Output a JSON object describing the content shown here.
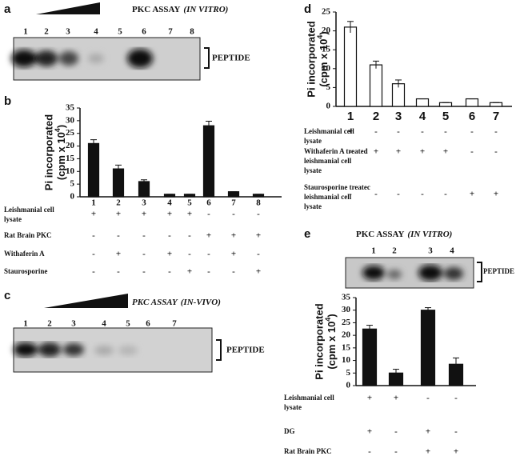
{
  "blots": [
    {
      "panel": "a",
      "title": "PKC ASSAY",
      "title_italic": "(IN VITRO)",
      "lanes": [
        "1",
        "2",
        "3",
        "4",
        "5",
        "6",
        "7",
        "8"
      ],
      "band_label": "PEPTIDE"
    },
    {
      "panel": "c",
      "title": "PKC ASSAY",
      "title_italic": "(IN-VIVO)",
      "lanes": [
        "1",
        "2",
        "3",
        "4",
        "5",
        "6",
        "7"
      ],
      "band_label": "PEPTIDE"
    },
    {
      "title": "PKC ASSAY",
      "title_italic": "(IN VITRO)",
      "lanes": [
        "1",
        "2",
        "3",
        "4"
      ],
      "band_label": "PEPTIDE"
    }
  ],
  "chart_data": [
    {
      "type": "bar",
      "panel": "b",
      "ylabel": "Pi incorporated",
      "ylabel_unit": "(cpm x 10",
      "ylabel_exp": "4",
      "ylabel_close": ")",
      "categories": [
        "1",
        "2",
        "3",
        "4",
        "5",
        "6",
        "7",
        "8"
      ],
      "values": [
        21,
        11,
        6,
        1,
        1,
        28,
        2,
        1
      ],
      "errors": [
        1.5,
        1.5,
        0.7,
        0,
        0,
        1.8,
        0,
        0
      ],
      "color": "#111111",
      "ylim": [
        0,
        35
      ],
      "yticks": [
        0,
        5,
        10,
        15,
        20,
        25,
        30,
        35
      ],
      "conditions": [
        {
          "label": [
            "Leishmanial cell",
            "lysate"
          ],
          "signs": [
            "+",
            "+",
            "+",
            "+",
            "+",
            "-",
            "-",
            "-"
          ]
        },
        {
          "label": [
            "Rat Brain PKC"
          ],
          "signs": [
            "-",
            "-",
            "-",
            "-",
            "-",
            "+",
            "+",
            "+"
          ]
        },
        {
          "label": [
            "Withaferin A"
          ],
          "signs": [
            "-",
            "+",
            "-",
            "+",
            "-",
            "-",
            "+",
            "-"
          ]
        },
        {
          "label": [
            "Staurosporine"
          ],
          "signs": [
            "-",
            "-",
            "-",
            "-",
            "+",
            "-",
            "-",
            "+"
          ]
        }
      ]
    },
    {
      "type": "bar",
      "panel": "d",
      "ylabel": "Pi incorporated",
      "ylabel_unit": "(cpm x 10",
      "ylabel_exp": "4",
      "ylabel_close": ")",
      "categories": [
        "1",
        "2",
        "3",
        "4",
        "5",
        "6",
        "7"
      ],
      "values": [
        21,
        11,
        6,
        2,
        1,
        2,
        1
      ],
      "errors": [
        1.5,
        1,
        1,
        0,
        0,
        0,
        0
      ],
      "color": "#ffffff",
      "ylim": [
        0,
        25
      ],
      "yticks": [
        0,
        5,
        10,
        15,
        20,
        25
      ],
      "conditions": [
        {
          "label": [
            "Leishmanial cell",
            "lysate"
          ],
          "signs": [
            "+",
            "-",
            "-",
            "-",
            "-",
            "-",
            "-"
          ]
        },
        {
          "label": [
            "Withaferin A treated",
            "leishmanial cell",
            "lysate"
          ],
          "signs": [
            "-",
            "+",
            "+",
            "+",
            "+",
            "-",
            "-"
          ]
        },
        {
          "label": [
            "Staurosporine treatec",
            "leishmanial cell",
            "lysate"
          ],
          "signs": [
            "-",
            "-",
            "-",
            "-",
            "-",
            "+",
            "+"
          ]
        }
      ]
    },
    {
      "type": "bar",
      "panel": "e",
      "ylabel": "Pi incorporated",
      "ylabel_unit": "(cpm x 10",
      "ylabel_exp": "4",
      "ylabel_close": ")",
      "categories": [
        "1",
        "2",
        "3",
        "4"
      ],
      "values": [
        22.5,
        5,
        30,
        8.5
      ],
      "errors": [
        1.5,
        1.5,
        1,
        2.5
      ],
      "color": "#111111",
      "ylim": [
        0,
        35
      ],
      "yticks": [
        0,
        5,
        10,
        15,
        20,
        25,
        30,
        35
      ],
      "conditions": [
        {
          "label": [
            "Leishmanial cell",
            "lysate"
          ],
          "signs": [
            "+",
            "+",
            "-",
            "-"
          ]
        },
        {
          "label": [
            "DG"
          ],
          "signs": [
            "+",
            "-",
            "+",
            "-"
          ]
        },
        {
          "label": [
            "Rat Brain PKC"
          ],
          "signs": [
            "-",
            "-",
            "+",
            "+"
          ]
        }
      ]
    }
  ]
}
